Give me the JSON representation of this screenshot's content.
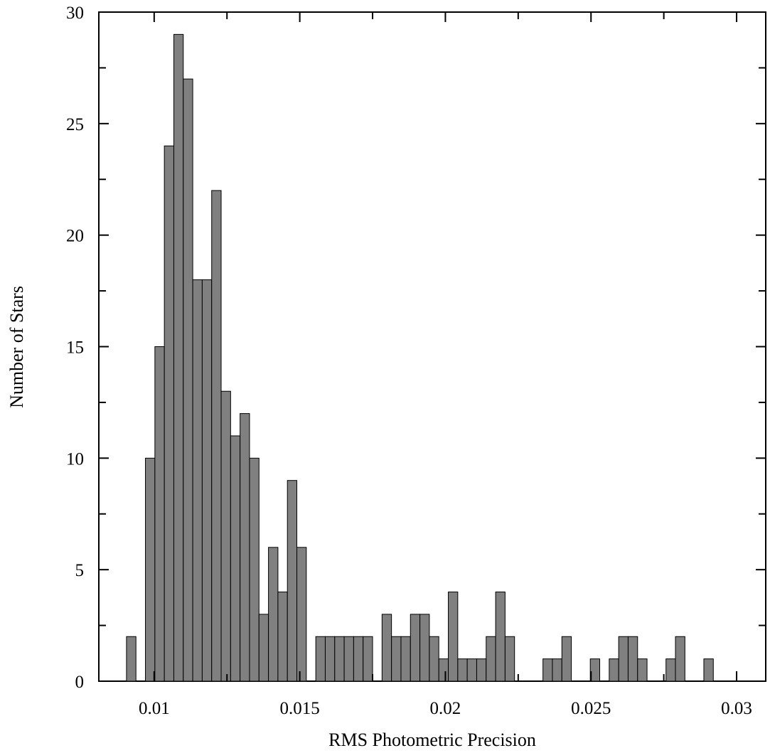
{
  "chart_data": {
    "type": "bar",
    "title": "",
    "xlabel": "RMS Photometric Precision",
    "ylabel": "Number of Stars",
    "xlim": [
      0.0081,
      0.031
    ],
    "ylim": [
      0,
      30
    ],
    "grid": false,
    "legend": "none",
    "bar_color": "#808080",
    "edge_color": "#000000",
    "bin_width": 0.000325,
    "bin_start": 0.00905,
    "x_ticks": [
      0.01,
      0.015,
      0.02,
      0.025,
      0.03
    ],
    "x_tick_labels": [
      "0.01",
      "0.015",
      "0.02",
      "0.025",
      "0.03"
    ],
    "y_ticks": [
      0,
      5,
      10,
      15,
      20,
      25,
      30
    ],
    "y_tick_labels": [
      "0",
      "5",
      "10",
      "15",
      "20",
      "25",
      "30"
    ],
    "counts": [
      2,
      0,
      10,
      15,
      24,
      29,
      27,
      18,
      18,
      22,
      13,
      11,
      12,
      10,
      3,
      6,
      4,
      9,
      6,
      0,
      2,
      2,
      2,
      2,
      2,
      2,
      0,
      3,
      2,
      2,
      3,
      3,
      2,
      1,
      4,
      1,
      1,
      1,
      2,
      4,
      2,
      0,
      0,
      0,
      1,
      1,
      2,
      0,
      0,
      1,
      0,
      1,
      2,
      2,
      1,
      0,
      0,
      1,
      2,
      0,
      0,
      1
    ]
  }
}
